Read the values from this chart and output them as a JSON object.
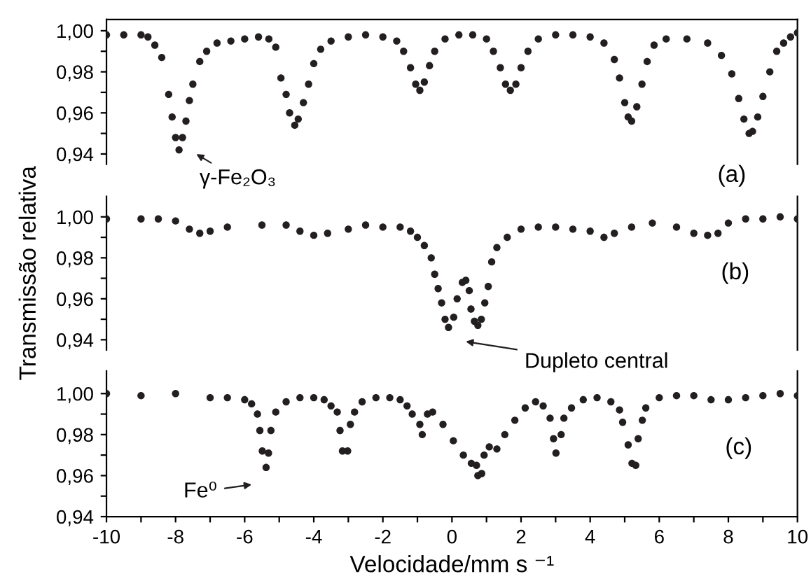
{
  "chart_data": [
    {
      "type": "scatter",
      "marker": "circle",
      "xlim": [
        -10,
        10
      ],
      "ylim": [
        0.935,
        1.0055
      ],
      "tick_labels": "y",
      "yticks": [
        {
          "value": 0.94,
          "label": "0,94"
        },
        {
          "value": 0.95,
          "label": null
        },
        {
          "value": 0.96,
          "label": "0,96"
        },
        {
          "value": 0.97,
          "label": null
        },
        {
          "value": 0.98,
          "label": "0,98"
        },
        {
          "value": 0.99,
          "label": null
        },
        {
          "value": 1.0,
          "label": "1,00"
        }
      ],
      "annotations": [
        "γ-Fe₂O₃",
        "(a)"
      ],
      "series": [
        {
          "color": "#231f20",
          "x": [
            -10,
            -9.5,
            -9.0,
            -8.8,
            -8.6,
            -8.4,
            -8.2,
            -8.1,
            -8.0,
            -7.9,
            -7.8,
            -7.7,
            -7.6,
            -7.5,
            -7.3,
            -7.1,
            -6.8,
            -6.4,
            -6.0,
            -5.6,
            -5.3,
            -5.1,
            -4.95,
            -4.8,
            -4.7,
            -4.55,
            -4.45,
            -4.3,
            -4.15,
            -4.0,
            -3.8,
            -3.5,
            -3.0,
            -2.5,
            -2.0,
            -1.6,
            -1.4,
            -1.2,
            -1.05,
            -0.93,
            -0.8,
            -0.65,
            -0.5,
            -0.2,
            0.2,
            0.6,
            1.0,
            1.2,
            1.4,
            1.55,
            1.69,
            1.85,
            2.0,
            2.2,
            2.5,
            3.0,
            3.5,
            4.0,
            4.4,
            4.7,
            4.85,
            5.0,
            5.1,
            5.2,
            5.35,
            5.5,
            5.65,
            5.85,
            6.2,
            6.8,
            7.4,
            7.8,
            8.1,
            8.3,
            8.45,
            8.6,
            8.7,
            8.85,
            9.0,
            9.2,
            9.4,
            9.6,
            9.8,
            10.0
          ],
          "values": [
            0.998,
            0.998,
            0.998,
            0.997,
            0.993,
            0.987,
            0.969,
            0.958,
            0.948,
            0.942,
            0.948,
            0.956,
            0.966,
            0.974,
            0.985,
            0.99,
            0.994,
            0.995,
            0.996,
            0.997,
            0.996,
            0.992,
            0.977,
            0.969,
            0.96,
            0.954,
            0.957,
            0.965,
            0.974,
            0.984,
            0.991,
            0.995,
            0.997,
            0.998,
            0.997,
            0.995,
            0.99,
            0.982,
            0.974,
            0.971,
            0.975,
            0.983,
            0.99,
            0.996,
            0.998,
            0.998,
            0.996,
            0.99,
            0.982,
            0.974,
            0.971,
            0.974,
            0.982,
            0.99,
            0.996,
            0.998,
            0.998,
            0.997,
            0.994,
            0.986,
            0.977,
            0.965,
            0.958,
            0.956,
            0.963,
            0.974,
            0.985,
            0.993,
            0.996,
            0.996,
            0.994,
            0.988,
            0.979,
            0.967,
            0.957,
            0.95,
            0.951,
            0.958,
            0.968,
            0.98,
            0.99,
            0.994,
            0.997,
            0.999
          ]
        }
      ]
    },
    {
      "type": "scatter",
      "marker": "circle",
      "xlim": [
        -10,
        10
      ],
      "ylim": [
        0.935,
        1.01
      ],
      "tick_labels": "y",
      "ylabel": "Transmissão relativa",
      "yticks": [
        {
          "value": 0.94,
          "label": "0,94"
        },
        {
          "value": 0.95,
          "label": null
        },
        {
          "value": 0.96,
          "label": "0,96"
        },
        {
          "value": 0.97,
          "label": null
        },
        {
          "value": 0.98,
          "label": "0,98"
        },
        {
          "value": 0.99,
          "label": null
        },
        {
          "value": 1.0,
          "label": "1,00"
        }
      ],
      "annotations": [
        "Dupleto central",
        "(b)"
      ],
      "series": [
        {
          "color": "#231f20",
          "x": [
            -10,
            -9,
            -8.5,
            -8.0,
            -7.6,
            -7.3,
            -7.0,
            -6.5,
            -5.5,
            -4.8,
            -4.4,
            -4.0,
            -3.6,
            -3.0,
            -2.5,
            -2.0,
            -1.5,
            -1.2,
            -1.0,
            -0.8,
            -0.6,
            -0.5,
            -0.4,
            -0.3,
            -0.2,
            -0.1,
            0.05,
            0.15,
            0.3,
            0.4,
            0.5,
            0.55,
            0.65,
            0.75,
            0.85,
            0.95,
            1.05,
            1.15,
            1.3,
            1.6,
            2.0,
            2.5,
            3.0,
            3.5,
            4.0,
            4.4,
            4.7,
            5.2,
            5.8,
            6.5,
            7.0,
            7.4,
            7.7,
            8.0,
            8.5,
            9.0,
            9.5,
            10.0
          ],
          "values": [
            0.999,
            0.999,
            0.999,
            0.998,
            0.994,
            0.992,
            0.993,
            0.995,
            0.996,
            0.996,
            0.993,
            0.991,
            0.992,
            0.994,
            0.996,
            0.995,
            0.995,
            0.993,
            0.99,
            0.986,
            0.98,
            0.972,
            0.965,
            0.958,
            0.95,
            0.946,
            0.951,
            0.96,
            0.968,
            0.969,
            0.964,
            0.955,
            0.949,
            0.947,
            0.95,
            0.958,
            0.966,
            0.978,
            0.985,
            0.99,
            0.994,
            0.995,
            0.995,
            0.994,
            0.993,
            0.99,
            0.992,
            0.995,
            0.997,
            0.995,
            0.992,
            0.991,
            0.992,
            0.997,
            0.999,
            0.999,
            1.0,
            0.999
          ]
        }
      ]
    },
    {
      "type": "scatter",
      "marker": "circle",
      "xlim": [
        -10,
        10
      ],
      "ylim": [
        0.94,
        1.011
      ],
      "xlabel": "Velocidade/mm s ⁻¹",
      "xticks": [
        -10,
        {
          "value": -9,
          "label": null
        },
        -8,
        {
          "value": -7,
          "label": null
        },
        -6,
        {
          "value": -5,
          "label": null
        },
        -4,
        {
          "value": -3,
          "label": null
        },
        -2,
        {
          "value": -1,
          "label": null
        },
        0,
        {
          "value": 1,
          "label": null
        },
        2,
        {
          "value": 3,
          "label": null
        },
        4,
        {
          "value": 5,
          "label": null
        },
        6,
        {
          "value": 7,
          "label": null
        },
        8,
        {
          "value": 9,
          "label": null
        },
        10
      ],
      "yticks": [
        {
          "value": 0.94,
          "label": "0,94"
        },
        {
          "value": 0.95,
          "label": null
        },
        {
          "value": 0.96,
          "label": "0,96"
        },
        {
          "value": 0.97,
          "label": null
        },
        {
          "value": 0.98,
          "label": "0,98"
        },
        {
          "value": 0.99,
          "label": null
        },
        {
          "value": 1.0,
          "label": "1,00"
        }
      ],
      "annotations": [
        "Fe⁰",
        "(c)"
      ],
      "series": [
        {
          "color": "#231f20",
          "x": [
            -10,
            -9,
            -8,
            -7,
            -6.5,
            -6.0,
            -5.8,
            -5.63,
            -5.56,
            -5.49,
            -5.38,
            -5.31,
            -5.24,
            -5.1,
            -4.8,
            -4.4,
            -4.0,
            -3.7,
            -3.5,
            -3.32,
            -3.24,
            -3.17,
            -3.02,
            -2.94,
            -2.82,
            -2.6,
            -2.2,
            -1.8,
            -1.5,
            -1.3,
            -1.15,
            -0.93,
            -0.86,
            -0.71,
            -0.56,
            -0.26,
            0.04,
            0.33,
            0.56,
            0.71,
            0.75,
            0.86,
            0.93,
            1.08,
            1.3,
            1.53,
            1.82,
            2.12,
            2.42,
            2.64,
            2.84,
            2.94,
            3.01,
            3.16,
            3.24,
            3.46,
            3.8,
            4.2,
            4.6,
            4.85,
            4.94,
            5.1,
            5.21,
            5.32,
            5.39,
            5.51,
            5.61,
            6.0,
            6.5,
            7.0,
            7.5,
            8.0,
            8.5,
            9.0,
            9.5,
            10.0
          ],
          "values": [
            1.0,
            0.999,
            1.0,
            0.998,
            0.998,
            0.997,
            0.995,
            0.99,
            0.982,
            0.972,
            0.964,
            0.971,
            0.982,
            0.991,
            0.996,
            0.998,
            0.998,
            0.997,
            0.994,
            0.991,
            0.982,
            0.972,
            0.972,
            0.985,
            0.991,
            0.996,
            0.998,
            0.998,
            0.997,
            0.994,
            0.99,
            0.985,
            0.98,
            0.99,
            0.991,
            0.985,
            0.977,
            0.97,
            0.966,
            0.965,
            0.96,
            0.961,
            0.97,
            0.974,
            0.973,
            0.98,
            0.987,
            0.993,
            0.996,
            0.994,
            0.988,
            0.978,
            0.971,
            0.98,
            0.988,
            0.993,
            0.997,
            0.998,
            0.996,
            0.992,
            0.986,
            0.975,
            0.966,
            0.965,
            0.978,
            0.987,
            0.993,
            0.998,
            0.999,
            0.999,
            0.997,
            0.997,
            0.998,
            0.999,
            1.0,
            0.999
          ]
        }
      ]
    }
  ]
}
